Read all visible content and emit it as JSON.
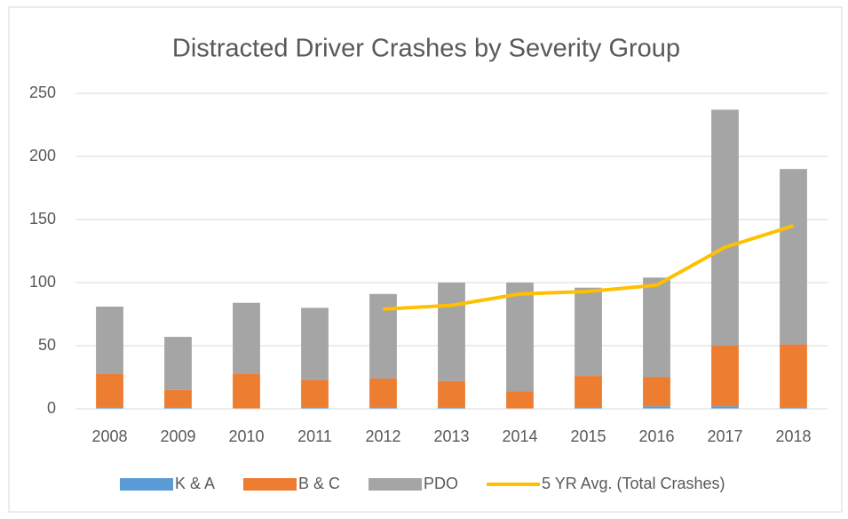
{
  "chart_data": {
    "type": "bar",
    "title": "Distracted Driver Crashes by Severity Group",
    "categories": [
      "2008",
      "2009",
      "2010",
      "2011",
      "2012",
      "2013",
      "2014",
      "2015",
      "2016",
      "2017",
      "2018"
    ],
    "series": [
      {
        "name": "K & A",
        "color": "#5b9bd5",
        "values": [
          1,
          1,
          0,
          1,
          1,
          1,
          0,
          1,
          2,
          2,
          1
        ]
      },
      {
        "name": "B & C",
        "color": "#ed7d31",
        "values": [
          27,
          14,
          28,
          22,
          23,
          21,
          14,
          25,
          23,
          48,
          50
        ]
      },
      {
        "name": "PDO",
        "color": "#a5a5a5",
        "values": [
          53,
          42,
          56,
          57,
          67,
          78,
          86,
          70,
          79,
          187,
          139
        ]
      },
      {
        "name": "5 YR Avg. (Total Crashes)",
        "color": "#ffc000",
        "type": "line",
        "values": [
          null,
          null,
          null,
          null,
          79,
          82,
          91,
          93,
          98,
          128,
          145
        ]
      }
    ],
    "ylim": [
      0,
      250
    ],
    "yticks": [
      0,
      50,
      100,
      150,
      200,
      250
    ],
    "grid": true,
    "legend": "bottom"
  }
}
